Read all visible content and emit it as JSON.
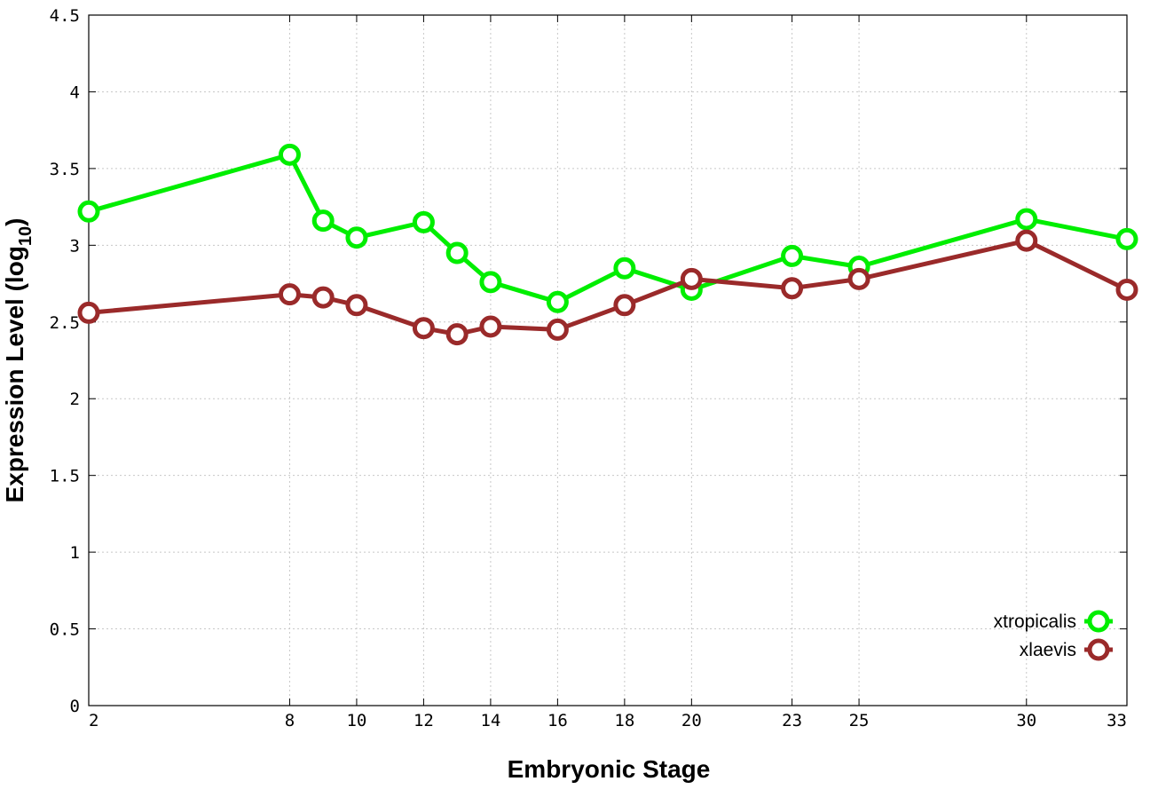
{
  "chart_data": {
    "type": "line",
    "title": "",
    "xlabel": "Embryonic Stage",
    "ylabel_main": "Expression Level (log",
    "ylabel_sub": "10",
    "ylabel_close": ")",
    "xlim": [
      2,
      33
    ],
    "ylim": [
      0,
      4.5
    ],
    "x_ticks": [
      2,
      8,
      10,
      12,
      14,
      16,
      18,
      20,
      23,
      25,
      30,
      33
    ],
    "x_tick_labels": [
      "2",
      "8",
      "10",
      "12",
      "14",
      "16",
      "18",
      "20",
      "23",
      "25",
      "30",
      "33"
    ],
    "y_ticks": [
      0,
      0.5,
      1,
      1.5,
      2,
      2.5,
      3,
      3.5,
      4,
      4.5
    ],
    "y_tick_labels": [
      "0",
      "0.5",
      "1",
      "1.5",
      "2",
      "2.5",
      "3",
      "3.5",
      "4",
      "4.5"
    ],
    "grid": true,
    "legend_position": "bottom-right",
    "x": [
      2,
      8,
      9,
      10,
      12,
      13,
      14,
      16,
      18,
      20,
      23,
      25,
      30,
      33
    ],
    "series": [
      {
        "name": "xtropicalis",
        "color": "#00ee00",
        "values": [
          3.22,
          3.59,
          3.16,
          3.05,
          3.15,
          2.95,
          2.76,
          2.63,
          2.85,
          2.71,
          2.93,
          2.86,
          3.17,
          3.04
        ]
      },
      {
        "name": "xlaevis",
        "color": "#9a2a2a",
        "values": [
          2.56,
          2.68,
          2.66,
          2.61,
          2.46,
          2.42,
          2.47,
          2.45,
          2.61,
          2.78,
          2.72,
          2.78,
          3.03,
          2.71
        ]
      }
    ]
  }
}
